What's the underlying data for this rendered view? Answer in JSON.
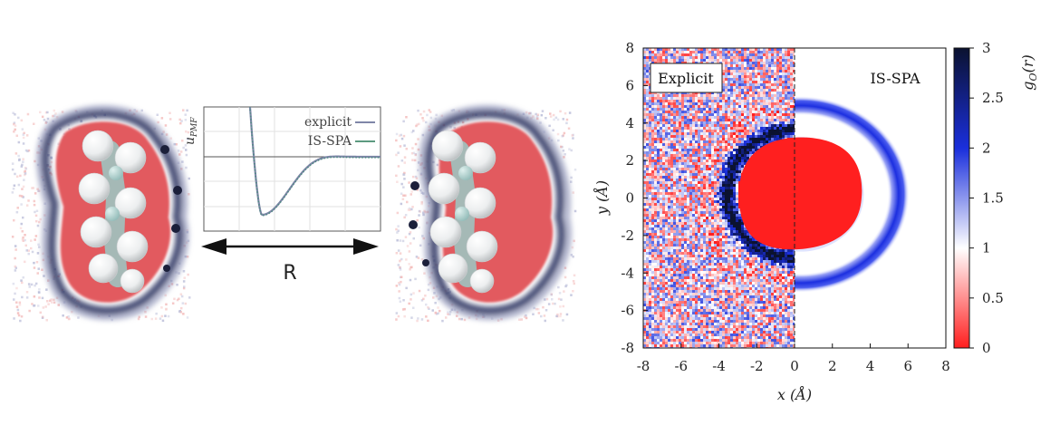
{
  "figure": {
    "left_panel": {
      "inset": {
        "ylabel": "u",
        "ylabel_sub": "PMF",
        "legend": [
          {
            "label": "explicit",
            "color": "#7f86a8"
          },
          {
            "label": "IS-SPA",
            "color": "#5d9a80"
          }
        ],
        "curve_color": "#4e8c82"
      },
      "arrow_label": "R",
      "colors": {
        "depletion": "#e25a5e",
        "shell": "#2a3160",
        "atom": "#f0f2f2",
        "bond": "#9fc3c0",
        "noise_red": "#f3b9b8",
        "noise_blue": "#b9bcd8"
      }
    },
    "right_panel": {
      "chart_data": {
        "type": "heatmap",
        "title": "",
        "xlabel": "x (Å)",
        "ylabel": "y (Å)",
        "xlim": [
          -8,
          8
        ],
        "ylim": [
          -8,
          8
        ],
        "xticks": [
          "-8",
          "-6",
          "-4",
          "-2",
          "0",
          "2",
          "4",
          "6",
          "8"
        ],
        "yticks": [
          "8",
          "6",
          "4",
          "2",
          "0",
          "-2",
          "-4",
          "-6",
          "-8"
        ],
        "regions": [
          {
            "label": "Explicit",
            "x_range": [
              -8,
              0
            ],
            "data": "noisy explicit-solvent density"
          },
          {
            "label": "IS-SPA",
            "x_range": [
              0,
              8
            ],
            "data": "smooth IS-SPA density"
          }
        ],
        "solute_center": [
          0.3,
          0.2
        ],
        "solute_radius_x": 3.3,
        "solute_radius_y": 3.0,
        "first_shell_peak": 3.3,
        "divider_x": 0,
        "colorbar": {
          "label": "g_O(r)",
          "label_main": "g",
          "label_sub": "O",
          "label_tail": "(r)",
          "min": 0,
          "max": 3,
          "ticks": [
            "0",
            "0.5",
            "1",
            "1.5",
            "2",
            "2.5",
            "3"
          ],
          "colormap": [
            "#ff1f1f",
            "#ffffff",
            "#1a2fdc",
            "#0b1230"
          ]
        }
      }
    }
  }
}
